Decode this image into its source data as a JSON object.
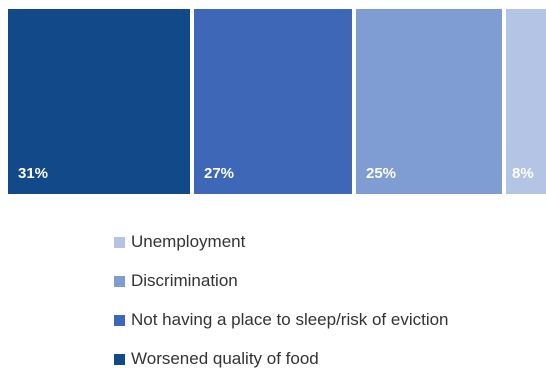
{
  "chart_data": {
    "type": "bar",
    "stacked_horizontal": true,
    "series": [
      {
        "name": "Worsened quality of food",
        "value": 31,
        "label": "31%",
        "color": "#114989"
      },
      {
        "name": "Not having a place to sleep/risk of eviction",
        "value": 27,
        "label": "27%",
        "color": "#3f67b8"
      },
      {
        "name": "Discrimination",
        "value": 25,
        "label": "25%",
        "color": "#7f9dd3"
      },
      {
        "name": "Unemployment",
        "value": 8,
        "label": "8%",
        "color": "#b3c4e4"
      }
    ],
    "legend": {
      "placement": "bottom",
      "order": [
        "Unemployment",
        "Discrimination",
        "Not having a place to sleep/risk of eviction",
        "Worsened quality of food"
      ]
    },
    "title": "",
    "xlabel": "",
    "ylabel": ""
  }
}
